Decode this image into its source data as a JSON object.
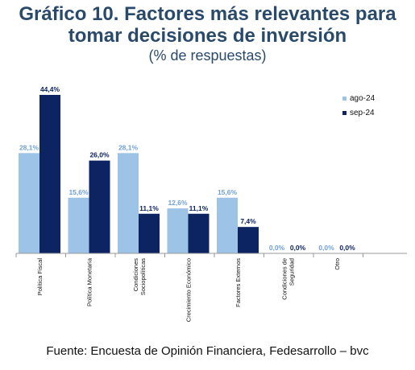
{
  "title_line1": "Gráfico 10. Factores más relevantes para",
  "title_line2": "tomar decisiones de inversión",
  "subtitle": "(% de respuestas)",
  "source": "Fuente: Encuesta de Opinión Financiera, Fedesarrollo – bvc",
  "colors": {
    "ago": "#9dc3e6",
    "sep": "#0c2461",
    "ago_label": "#6f9fd8",
    "sep_label": "#0c2461"
  },
  "chart_data": {
    "type": "bar",
    "categories": [
      "Política Fiscal",
      "Política Monetaria",
      "Condiciones Sociopolíticas",
      "Crecimiento Económico",
      "Factores Externos",
      "Condiciones de Seguridad",
      "Otro"
    ],
    "category_label_lines": [
      [
        "Política Fiscal"
      ],
      [
        "Política Monetaria"
      ],
      [
        "Condiciones",
        "Sociopolíticas"
      ],
      [
        "Crecimiento Económico"
      ],
      [
        "Factores Externos"
      ],
      [
        "Condiciones de",
        "Seguridad"
      ],
      [
        "Otro"
      ]
    ],
    "series": [
      {
        "name": "ago-24",
        "values": [
          28.1,
          15.6,
          28.1,
          12.6,
          15.6,
          0.0,
          0.0
        ],
        "labels": [
          "28,1%",
          "15,6%",
          "28,1%",
          "12,6%",
          "15,6%",
          "0,0%",
          "0,0%"
        ]
      },
      {
        "name": "sep-24",
        "values": [
          44.4,
          26.0,
          11.1,
          11.1,
          7.4,
          0.0,
          0.0
        ],
        "labels": [
          "44,4%",
          "26,0%",
          "11,1%",
          "11,1%",
          "7,4%",
          "0,0%",
          "0,0%"
        ]
      }
    ],
    "ylim": [
      0,
      45
    ],
    "grid": false,
    "legend_position": "top-right"
  }
}
